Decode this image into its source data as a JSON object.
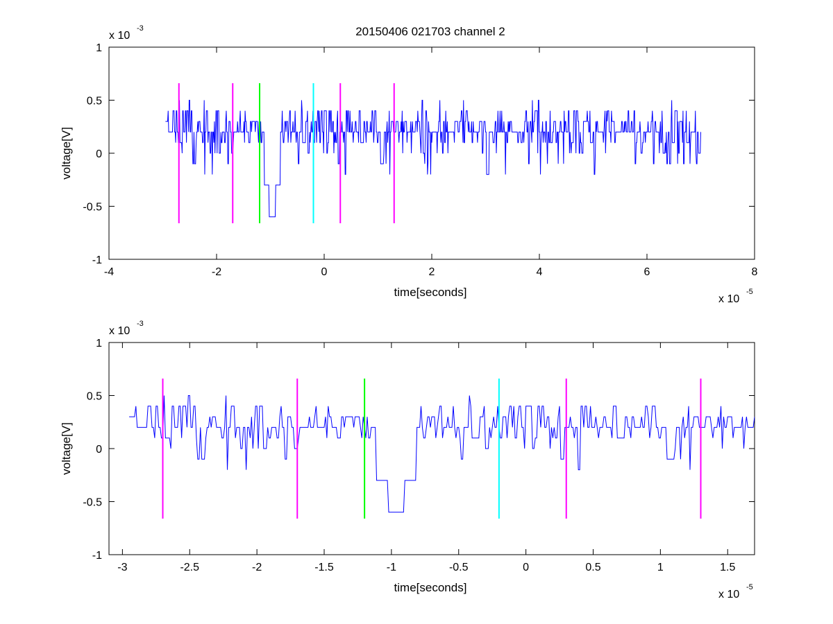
{
  "figure": {
    "title": "20150406 021703 channel 2"
  },
  "chart_data": [
    {
      "type": "line",
      "title": "20150406 021703 channel 2",
      "xlabel": "time[seconds]",
      "ylabel": "voltage[V]",
      "x_exponent_label": "x 10",
      "x_exponent": "-5",
      "y_exponent_label": "x 10",
      "y_exponent": "-3",
      "xlim": [
        -4e-05,
        8e-05
      ],
      "ylim": [
        -0.001,
        0.001
      ],
      "xticks": [
        -4,
        -2,
        0,
        2,
        4,
        6,
        8
      ],
      "xtick_labels": [
        "-4",
        "-2",
        "0",
        "2",
        "4",
        "6",
        "8"
      ],
      "yticks": [
        -1,
        -0.5,
        0,
        0.5,
        1
      ],
      "ytick_labels": [
        "-1",
        "-0.5",
        "0",
        "0.5",
        "1"
      ],
      "grid": false,
      "signal": {
        "color": "#0000ff",
        "x_start": -2.95e-05,
        "x_end": 7e-05,
        "sample_step": 1e-07,
        "quantization": 0.0001,
        "baseline": 0.0002,
        "dip_x": -9.7e-06,
        "dip_value": -0.0006
      },
      "markers": [
        {
          "x": -2.7e-05,
          "color": "#ff00ff",
          "ymin": -0.00066,
          "ymax": 0.00066
        },
        {
          "x": -1.7e-05,
          "color": "#ff00ff",
          "ymin": -0.00066,
          "ymax": 0.00066
        },
        {
          "x": -1.2e-05,
          "color": "#00ff00",
          "ymin": -0.00066,
          "ymax": 0.00066
        },
        {
          "x": -2e-06,
          "color": "#00ffff",
          "ymin": -0.00066,
          "ymax": 0.00066
        },
        {
          "x": 3e-06,
          "color": "#ff00ff",
          "ymin": -0.00066,
          "ymax": 0.00066
        },
        {
          "x": 1.3e-05,
          "color": "#ff00ff",
          "ymin": -0.00066,
          "ymax": 0.00066
        }
      ]
    },
    {
      "type": "line",
      "title": "",
      "xlabel": "time[seconds]",
      "ylabel": "voltage[V]",
      "x_exponent_label": "x 10",
      "x_exponent": "-5",
      "y_exponent_label": "x 10",
      "y_exponent": "-3",
      "xlim": [
        -3.1e-05,
        1.7e-05
      ],
      "ylim": [
        -0.001,
        0.001
      ],
      "xticks": [
        -3,
        -2.5,
        -2,
        -1.5,
        -1,
        -0.5,
        0,
        0.5,
        1,
        1.5
      ],
      "xtick_labels": [
        "-3",
        "-2.5",
        "-2",
        "-1.5",
        "-1",
        "-0.5",
        "0",
        "0.5",
        "1",
        "1.5"
      ],
      "yticks": [
        -1,
        -0.5,
        0,
        0.5,
        1
      ],
      "ytick_labels": [
        "-1",
        "-0.5",
        "0",
        "0.5",
        "1"
      ],
      "grid": false,
      "signal": {
        "color": "#0000ff",
        "x_start": -2.95e-05,
        "x_end": 1.7e-05,
        "sample_step": 1e-07,
        "quantization": 0.0001,
        "baseline": 0.0002,
        "dip_x": -9.7e-06,
        "dip_value": -0.0006
      },
      "markers": [
        {
          "x": -2.7e-05,
          "color": "#ff00ff",
          "ymin": -0.00066,
          "ymax": 0.00066
        },
        {
          "x": -1.7e-05,
          "color": "#ff00ff",
          "ymin": -0.00066,
          "ymax": 0.00066
        },
        {
          "x": -1.2e-05,
          "color": "#00ff00",
          "ymin": -0.00066,
          "ymax": 0.00066
        },
        {
          "x": -2e-06,
          "color": "#00ffff",
          "ymin": -0.00066,
          "ymax": 0.00066
        },
        {
          "x": 3e-06,
          "color": "#ff00ff",
          "ymin": -0.00066,
          "ymax": 0.00066
        },
        {
          "x": 1.3e-05,
          "color": "#ff00ff",
          "ymin": -0.00066,
          "ymax": 0.00066
        }
      ]
    }
  ]
}
